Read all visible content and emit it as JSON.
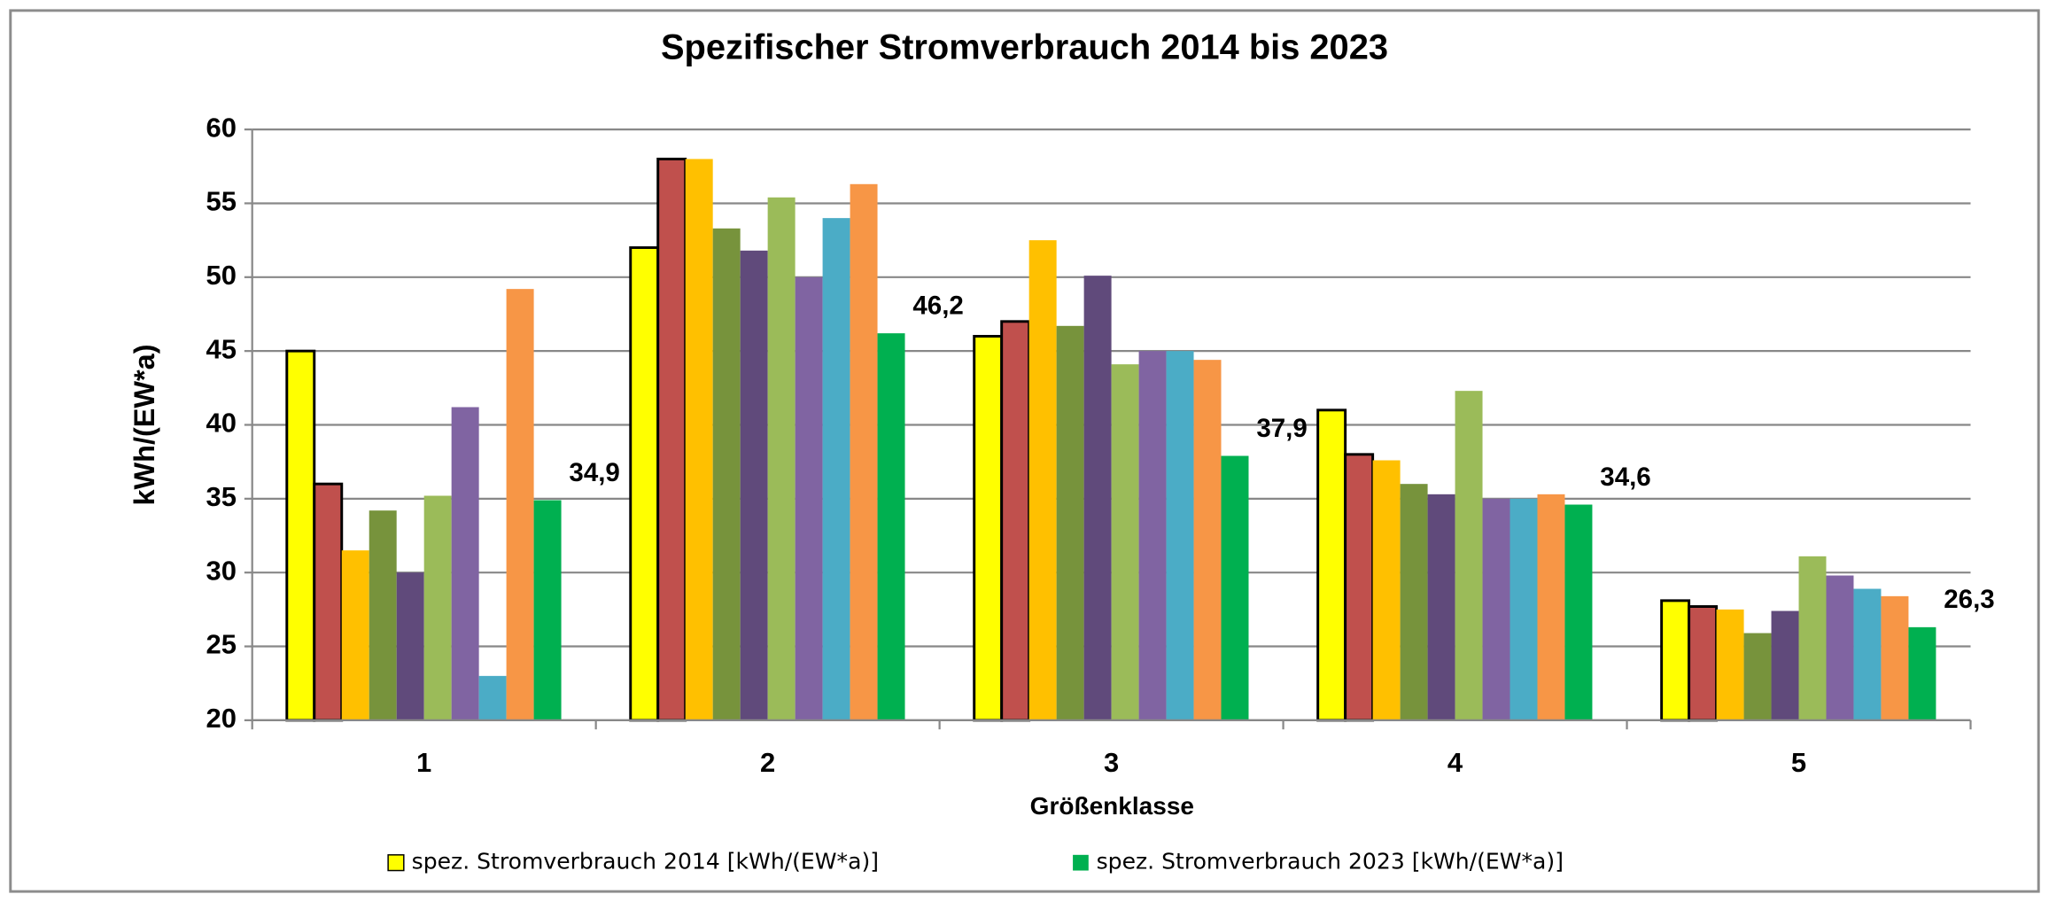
{
  "chart_data": {
    "type": "bar",
    "title": "Spezifischer Stromverbrauch 2014 bis 2023",
    "y_label": "kWh/(EW*a)",
    "x_label": "Größenklasse",
    "categories": [
      "1",
      "2",
      "3",
      "4",
      "5"
    ],
    "ylim": [
      20,
      60
    ],
    "yticks": [
      20,
      25,
      30,
      35,
      40,
      45,
      50,
      55,
      60
    ],
    "grid": true,
    "legend": "bottom",
    "series": [
      {
        "name": "spez. Stromverbrauch 2014 [kWh/(EW*a)]",
        "color": "#ffff00",
        "edgecolor": "#000000",
        "values": [
          45,
          52,
          46,
          41,
          28.1
        ]
      },
      {
        "color": "#c0504d",
        "edgecolor": "#000000",
        "values": [
          36,
          58,
          47,
          38,
          27.7
        ]
      },
      {
        "color": "#ffc000",
        "values": [
          31.5,
          58,
          52.5,
          37.6,
          27.5
        ]
      },
      {
        "color": "#77933c",
        "values": [
          34.2,
          53.3,
          46.7,
          36,
          25.9
        ]
      },
      {
        "color": "#604a7b",
        "values": [
          30,
          51.8,
          50.1,
          35.3,
          27.4
        ]
      },
      {
        "color": "#9bbb59",
        "values": [
          35.2,
          55.4,
          44.1,
          42.3,
          31.1
        ]
      },
      {
        "color": "#8064a2",
        "values": [
          41.2,
          50,
          45,
          35,
          29.8
        ]
      },
      {
        "color": "#4bacc6",
        "values": [
          23,
          54,
          45,
          35,
          28.9
        ]
      },
      {
        "color": "#f79646",
        "values": [
          49.2,
          56.3,
          44.4,
          35.3,
          28.4
        ]
      },
      {
        "name": "spez. Stromverbrauch 2023 [kWh/(EW*a)]",
        "color": "#00b050",
        "values": [
          34.9,
          46.2,
          37.9,
          34.6,
          26.3
        ],
        "value_labels": [
          "34,9",
          "46,2",
          "37,9",
          "34,6",
          "26,3"
        ]
      }
    ]
  }
}
